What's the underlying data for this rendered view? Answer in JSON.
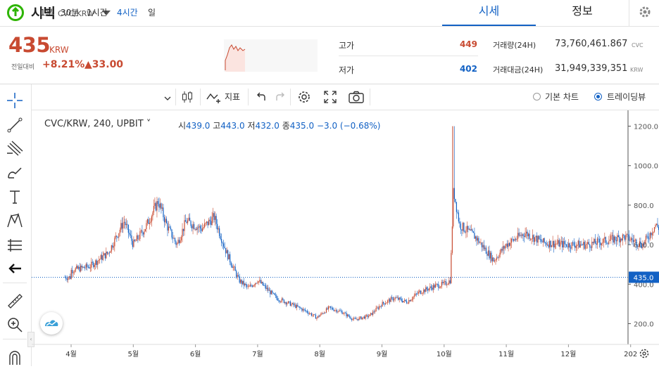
{
  "header": {
    "coin_name": "시빅",
    "pair": "CVC/KRW",
    "tabs": [
      {
        "label": "시세",
        "active": true
      },
      {
        "label": "정보",
        "active": false
      }
    ]
  },
  "ticker": {
    "price": "435",
    "unit": "KRW",
    "prev_label": "전일대비",
    "change_pct": "+8.21%",
    "change_amt": "▲33.00",
    "high_label": "고가",
    "high": "449",
    "low_label": "저가",
    "low": "402",
    "volume_label": "거래량(24H)",
    "volume": "73,760,461.867",
    "volume_unit": "CVC",
    "amount_label": "거래대금(24H)",
    "amount": "31,949,339,351",
    "amount_unit": "KRW"
  },
  "toolbar": {
    "intervals": [
      "1분",
      "30분",
      "1시간",
      "4시간",
      "일"
    ],
    "active_interval": "4시간",
    "indicator_label": "지표",
    "basic_chart_label": "기본 차트",
    "tradingview_label": "트레이딩뷰",
    "selected_view": "트레이딩뷰"
  },
  "legend": {
    "symbol": "CVC/KRW, 240, UPBIT",
    "o_label": "시",
    "o": "439.0",
    "h_label": "고",
    "h": "443.0",
    "l_label": "저",
    "l": "432.0",
    "c_label": "종",
    "c": "435.0",
    "change": "−3.0 (−0.68%)"
  },
  "chart_data": {
    "type": "line",
    "series": [
      {
        "name": "",
        "values_note": "candlestick 4h"
      }
    ],
    "x": [
      "4월",
      "5월",
      "6월",
      "7월",
      "8월",
      "9월",
      "10월",
      "11월",
      "12월",
      "202"
    ],
    "close_path": [
      [
        0,
        470
      ],
      [
        0.3,
        490
      ],
      [
        0.6,
        560
      ],
      [
        0.85,
        720
      ],
      [
        1.0,
        600
      ],
      [
        1.2,
        690
      ],
      [
        1.4,
        820
      ],
      [
        1.55,
        690
      ],
      [
        1.7,
        600
      ],
      [
        1.85,
        720
      ],
      [
        2.1,
        680
      ],
      [
        2.3,
        740
      ],
      [
        2.5,
        560
      ],
      [
        2.7,
        420
      ],
      [
        2.85,
        380
      ],
      [
        3.0,
        420
      ],
      [
        3.3,
        330
      ],
      [
        3.6,
        290
      ],
      [
        3.8,
        260
      ],
      [
        3.95,
        230
      ],
      [
        4.15,
        280
      ],
      [
        4.35,
        260
      ],
      [
        4.55,
        220
      ],
      [
        4.8,
        240
      ],
      [
        5.0,
        300
      ],
      [
        5.2,
        330
      ],
      [
        5.4,
        310
      ],
      [
        5.6,
        360
      ],
      [
        5.85,
        390
      ],
      [
        6.0,
        400
      ],
      [
        6.1,
        420
      ],
      [
        6.15,
        880
      ],
      [
        6.25,
        700
      ],
      [
        6.5,
        640
      ],
      [
        6.8,
        520
      ],
      [
        7.0,
        600
      ],
      [
        7.3,
        660
      ],
      [
        7.6,
        610
      ],
      [
        8.0,
        600
      ],
      [
        8.3,
        600
      ],
      [
        8.6,
        620
      ],
      [
        8.9,
        640
      ],
      [
        9.2,
        600
      ],
      [
        9.4,
        700
      ],
      [
        9.6,
        640
      ],
      [
        9.8,
        600
      ],
      [
        10.0,
        500
      ],
      [
        10.15,
        420
      ],
      [
        10.4,
        400
      ],
      [
        10.7,
        410
      ],
      [
        11.0,
        400
      ],
      [
        11.3,
        420
      ],
      [
        11.6,
        430
      ],
      [
        11.8,
        435
      ]
    ],
    "y_ticks": [
      200.0,
      400.0,
      600.0,
      800.0,
      1000.0,
      1200.0
    ],
    "current_price": 435.0,
    "ylim": [
      95,
      1280
    ]
  },
  "colors": {
    "up": "#c84a31",
    "down": "#1261c4",
    "accent": "#1261c4"
  }
}
